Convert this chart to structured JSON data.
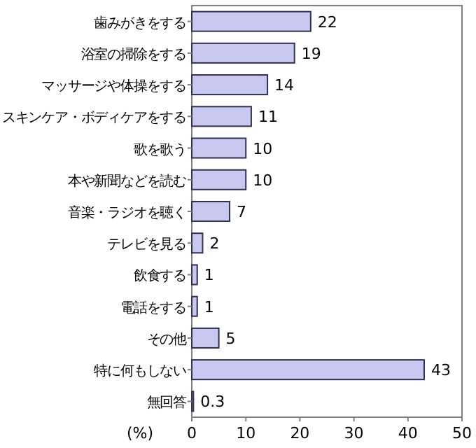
{
  "chart_data": {
    "type": "bar",
    "orientation": "horizontal",
    "xlabel": "(%)",
    "categories": [
      "歯みがきをする",
      "浴室の掃除をする",
      "マッサージや体操をする",
      "スキンケア・ボディケアをする",
      "歌を歌う",
      "本や新聞などを読む",
      "音楽・ラジオを聴く",
      "テレビを見る",
      "飲食する",
      "電話をする",
      "その他",
      "特に何もしない",
      "無回答"
    ],
    "values": [
      22,
      19,
      14,
      11,
      10,
      10,
      7,
      2,
      1,
      1,
      5,
      43,
      0.3
    ],
    "color": "#c8c8f0",
    "xlim": [
      0,
      50
    ],
    "xticks": [
      0,
      10,
      20,
      30,
      40,
      50
    ],
    "data_labels": true,
    "grid": false
  }
}
